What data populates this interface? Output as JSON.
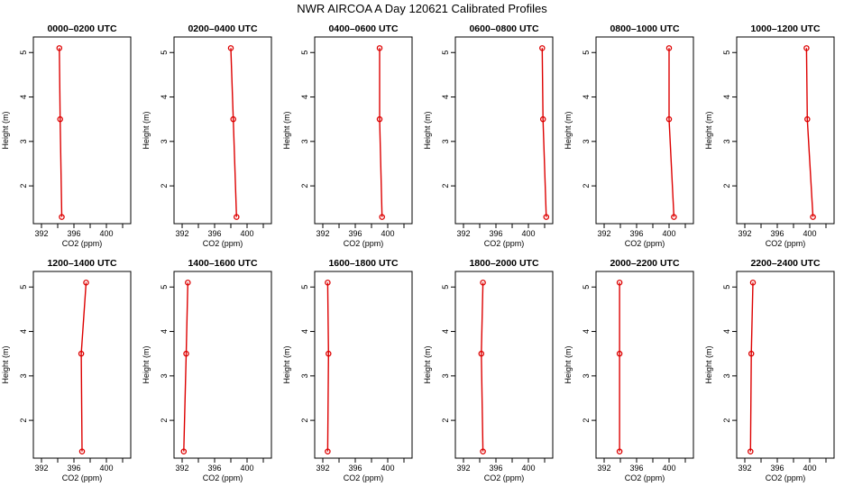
{
  "figure_title": "NWR AIRCOA A  Day 120621  Calibrated Profiles",
  "colors": {
    "series": "#dd0000",
    "frame": "#000000",
    "background": "#ffffff"
  },
  "chart_data": [
    {
      "type": "line",
      "title": "0000–0200 UTC",
      "xlabel": "CO2 (ppm)",
      "ylabel": "Height (m)",
      "xlim": [
        391,
        403
      ],
      "ylim": [
        1.15,
        5.35
      ],
      "xticks": [
        "392",
        "396",
        "400"
      ],
      "yticks": [
        "2",
        "3",
        "4",
        "5"
      ],
      "grid": false,
      "series": [
        {
          "x": [
            394.5,
            394.3,
            394.2
          ],
          "y": [
            1.3,
            3.5,
            5.1
          ]
        }
      ]
    },
    {
      "type": "line",
      "title": "0200–0400 UTC",
      "xlabel": "CO2 (ppm)",
      "ylabel": "Height (m)",
      "xlim": [
        391,
        403
      ],
      "ylim": [
        1.15,
        5.35
      ],
      "xticks": [
        "392",
        "396",
        "400"
      ],
      "yticks": [
        "2",
        "3",
        "4",
        "5"
      ],
      "grid": false,
      "series": [
        {
          "x": [
            398.7,
            398.3,
            398.0
          ],
          "y": [
            1.3,
            3.5,
            5.1
          ]
        }
      ]
    },
    {
      "type": "line",
      "title": "0400–0600 UTC",
      "xlabel": "CO2 (ppm)",
      "ylabel": "Height (m)",
      "xlim": [
        391,
        403
      ],
      "ylim": [
        1.15,
        5.35
      ],
      "xticks": [
        "392",
        "396",
        "400"
      ],
      "yticks": [
        "2",
        "3",
        "4",
        "5"
      ],
      "grid": false,
      "series": [
        {
          "x": [
            399.3,
            399.0,
            399.0
          ],
          "y": [
            1.3,
            3.5,
            5.1
          ]
        }
      ]
    },
    {
      "type": "line",
      "title": "0600–0800 UTC",
      "xlabel": "CO2 (ppm)",
      "ylabel": "Height (m)",
      "xlim": [
        391,
        403
      ],
      "ylim": [
        1.15,
        5.35
      ],
      "xticks": [
        "392",
        "396",
        "400"
      ],
      "yticks": [
        "2",
        "3",
        "4",
        "5"
      ],
      "grid": false,
      "series": [
        {
          "x": [
            402.2,
            401.8,
            401.7
          ],
          "y": [
            1.3,
            3.5,
            5.1
          ]
        }
      ]
    },
    {
      "type": "line",
      "title": "0800–1000 UTC",
      "xlabel": "CO2 (ppm)",
      "ylabel": "Height (m)",
      "xlim": [
        391,
        403
      ],
      "ylim": [
        1.15,
        5.35
      ],
      "xticks": [
        "392",
        "396",
        "400"
      ],
      "yticks": [
        "2",
        "3",
        "4",
        "5"
      ],
      "grid": false,
      "series": [
        {
          "x": [
            400.6,
            400.0,
            400.0
          ],
          "y": [
            1.3,
            3.5,
            5.1
          ]
        }
      ]
    },
    {
      "type": "line",
      "title": "1000–1200 UTC",
      "xlabel": "CO2 (ppm)",
      "ylabel": "Height (m)",
      "xlim": [
        391,
        403
      ],
      "ylim": [
        1.15,
        5.35
      ],
      "xticks": [
        "392",
        "396",
        "400"
      ],
      "yticks": [
        "2",
        "3",
        "4",
        "5"
      ],
      "grid": false,
      "series": [
        {
          "x": [
            400.4,
            399.7,
            399.6
          ],
          "y": [
            1.3,
            3.5,
            5.1
          ]
        }
      ]
    },
    {
      "type": "line",
      "title": "1200–1400 UTC",
      "xlabel": "CO2 (ppm)",
      "ylabel": "Height (m)",
      "xlim": [
        391,
        403
      ],
      "ylim": [
        1.15,
        5.35
      ],
      "xticks": [
        "392",
        "396",
        "400"
      ],
      "yticks": [
        "2",
        "3",
        "4",
        "5"
      ],
      "grid": false,
      "series": [
        {
          "x": [
            397.0,
            396.9,
            397.5
          ],
          "y": [
            1.3,
            3.5,
            5.1
          ]
        }
      ]
    },
    {
      "type": "line",
      "title": "1400–1600 UTC",
      "xlabel": "CO2 (ppm)",
      "ylabel": "Height (m)",
      "xlim": [
        391,
        403
      ],
      "ylim": [
        1.15,
        5.35
      ],
      "xticks": [
        "392",
        "396",
        "400"
      ],
      "yticks": [
        "2",
        "3",
        "4",
        "5"
      ],
      "grid": false,
      "series": [
        {
          "x": [
            392.2,
            392.5,
            392.7
          ],
          "y": [
            1.3,
            3.5,
            5.1
          ]
        }
      ]
    },
    {
      "type": "line",
      "title": "1600–1800 UTC",
      "xlabel": "CO2 (ppm)",
      "ylabel": "Height (m)",
      "xlim": [
        391,
        403
      ],
      "ylim": [
        1.15,
        5.35
      ],
      "xticks": [
        "392",
        "396",
        "400"
      ],
      "yticks": [
        "2",
        "3",
        "4",
        "5"
      ],
      "grid": false,
      "series": [
        {
          "x": [
            392.6,
            392.7,
            392.6
          ],
          "y": [
            1.3,
            3.5,
            5.1
          ]
        }
      ]
    },
    {
      "type": "line",
      "title": "1800–2000 UTC",
      "xlabel": "CO2 (ppm)",
      "ylabel": "Height (m)",
      "xlim": [
        391,
        403
      ],
      "ylim": [
        1.15,
        5.35
      ],
      "xticks": [
        "392",
        "396",
        "400"
      ],
      "yticks": [
        "2",
        "3",
        "4",
        "5"
      ],
      "grid": false,
      "series": [
        {
          "x": [
            394.4,
            394.2,
            394.4
          ],
          "y": [
            1.3,
            3.5,
            5.1
          ]
        }
      ]
    },
    {
      "type": "line",
      "title": "2000–2200 UTC",
      "xlabel": "CO2 (ppm)",
      "ylabel": "Height (m)",
      "xlim": [
        391,
        403
      ],
      "ylim": [
        1.15,
        5.35
      ],
      "xticks": [
        "392",
        "396",
        "400"
      ],
      "yticks": [
        "2",
        "3",
        "4",
        "5"
      ],
      "grid": false,
      "series": [
        {
          "x": [
            393.9,
            393.9,
            393.9
          ],
          "y": [
            1.3,
            3.5,
            5.1
          ]
        }
      ]
    },
    {
      "type": "line",
      "title": "2200–2400 UTC",
      "xlabel": "CO2 (ppm)",
      "ylabel": "Height (m)",
      "xlim": [
        391,
        403
      ],
      "ylim": [
        1.15,
        5.35
      ],
      "xticks": [
        "392",
        "396",
        "400"
      ],
      "yticks": [
        "2",
        "3",
        "4",
        "5"
      ],
      "grid": false,
      "series": [
        {
          "x": [
            392.7,
            392.8,
            393.0
          ],
          "y": [
            1.3,
            3.5,
            5.1
          ]
        }
      ]
    }
  ]
}
